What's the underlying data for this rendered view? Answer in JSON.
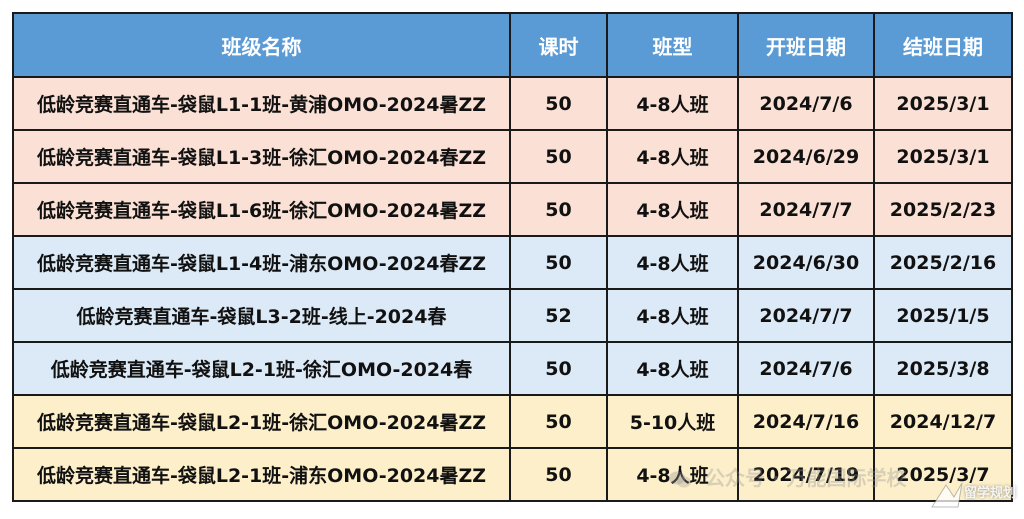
{
  "table": {
    "headers": [
      "班级名称",
      "课时",
      "班型",
      "开班日期",
      "结班日期"
    ],
    "header_color": "#5b9bd5",
    "row_colors": {
      "peach": "#fbe1d5",
      "blue": "#dce9f6",
      "yellow": "#fcefc9"
    },
    "rows": [
      {
        "name": "低龄竞赛直通车-袋鼠L1-1班-黄浦OMO-2024暑ZZ",
        "hours": "50",
        "type": "4-8人班",
        "start": "2024/7/6",
        "end": "2025/3/1",
        "color": "peach"
      },
      {
        "name": "低龄竞赛直通车-袋鼠L1-3班-徐汇OMO-2024春ZZ",
        "hours": "50",
        "type": "4-8人班",
        "start": "2024/6/29",
        "end": "2025/3/1",
        "color": "peach"
      },
      {
        "name": "低龄竞赛直通车-袋鼠L1-6班-徐汇OMO-2024暑ZZ",
        "hours": "50",
        "type": "4-8人班",
        "start": "2024/7/7",
        "end": "2025/2/23",
        "color": "peach"
      },
      {
        "name": "低龄竞赛直通车-袋鼠L1-4班-浦东OMO-2024春ZZ",
        "hours": "50",
        "type": "4-8人班",
        "start": "2024/6/30",
        "end": "2025/2/16",
        "color": "blue"
      },
      {
        "name": "低龄竞赛直通车-袋鼠L3-2班-线上-2024春",
        "hours": "52",
        "type": "4-8人班",
        "start": "2024/7/7",
        "end": "2025/1/5",
        "color": "blue"
      },
      {
        "name": "低龄竞赛直通车-袋鼠L2-1班-徐汇OMO-2024春",
        "hours": "50",
        "type": "4-8人班",
        "start": "2024/7/6",
        "end": "2025/3/8",
        "color": "blue"
      },
      {
        "name": "低龄竞赛直通车-袋鼠L2-1班-徐汇OMO-2024暑ZZ",
        "hours": "50",
        "type": "5-10人班",
        "start": "2024/7/16",
        "end": "2024/12/7",
        "color": "yellow"
      },
      {
        "name": "低龄竞赛直通车-袋鼠L2-1班-浦东OMO-2024暑ZZ",
        "hours": "50",
        "type": "4-8人班",
        "start": "2024/7/19",
        "end": "2025/3/7",
        "color": "yellow"
      }
    ]
  },
  "watermark": {
    "text": "公众号 · 万能国际学校",
    "icon": "wechat-icon"
  },
  "corner_logo": {
    "text": "留学规划",
    "icon": "bird-logo-icon"
  }
}
